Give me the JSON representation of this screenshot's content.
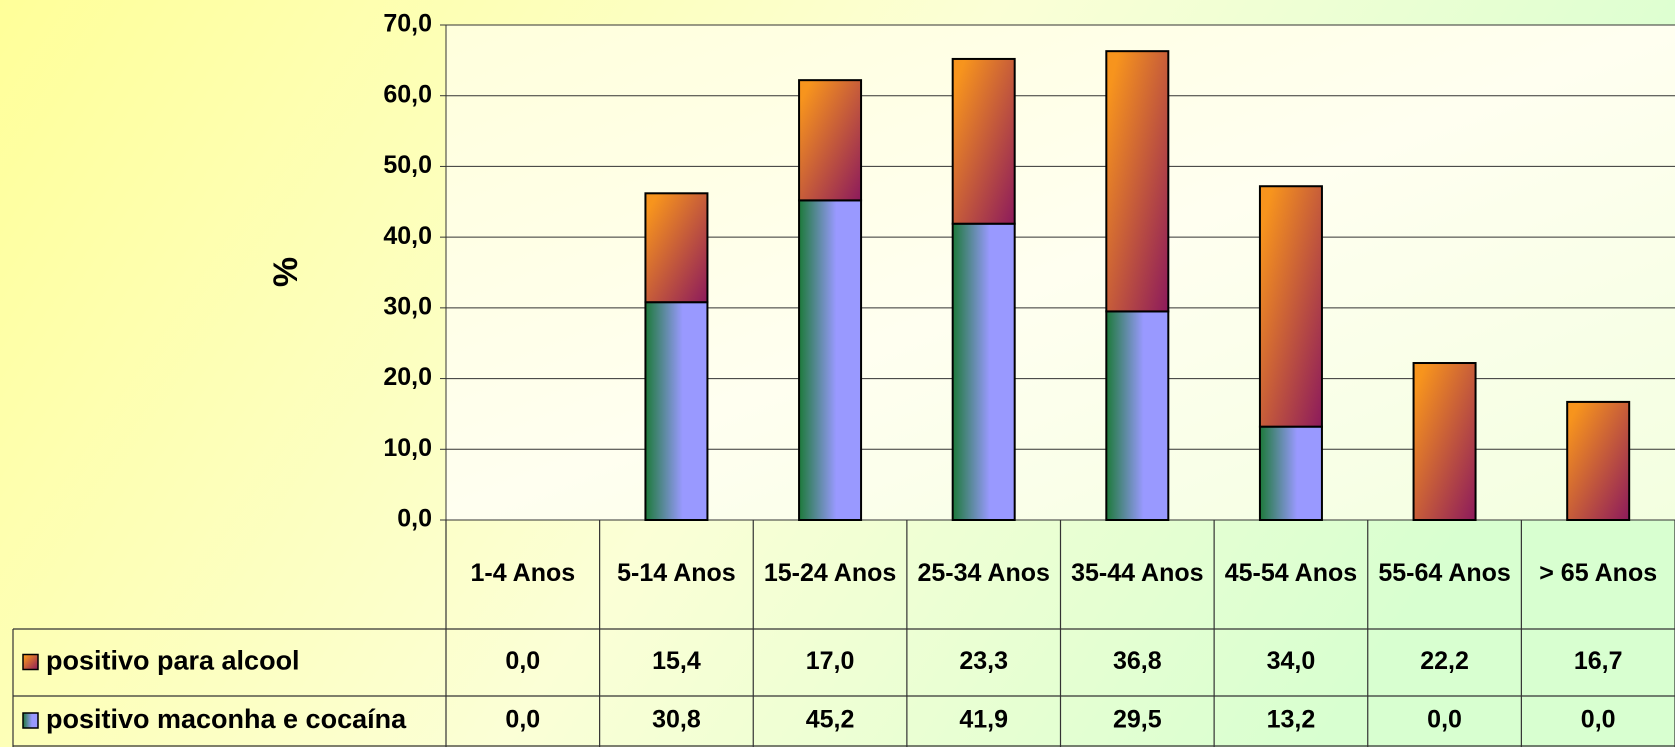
{
  "chart_data": {
    "type": "bar",
    "stacked": true,
    "y_label": "%",
    "categories": [
      "1-4 Anos",
      "5-14 Anos",
      "15-24 Anos",
      "25-34 Anos",
      "35-44 Anos",
      "45-54 Anos",
      "55-64 Anos",
      "> 65 Anos"
    ],
    "series": [
      {
        "name": "positivo para alcool",
        "color": "#f7941d",
        "values": [
          0.0,
          15.4,
          17.0,
          23.3,
          36.8,
          34.0,
          22.2,
          16.7
        ],
        "value_labels": [
          "0,0",
          "15,4",
          "17,0",
          "23,3",
          "36,8",
          "34,0",
          "22,2",
          "16,7"
        ]
      },
      {
        "name": "positivo maconha e cocaína",
        "color": "#9999ff",
        "values": [
          0.0,
          30.8,
          45.2,
          41.9,
          29.5,
          13.2,
          0.0,
          0.0
        ],
        "value_labels": [
          "0,0",
          "30,8",
          "45,2",
          "41,9",
          "29,5",
          "13,2",
          "0,0",
          "0,0"
        ]
      }
    ],
    "stack_order": [
      1,
      0
    ],
    "ylim": [
      0,
      70
    ],
    "yticks": [
      {
        "value": 0,
        "label": "0,0"
      },
      {
        "value": 10,
        "label": "10,0"
      },
      {
        "value": 20,
        "label": "20,0"
      },
      {
        "value": 30,
        "label": "30,0"
      },
      {
        "value": 40,
        "label": "40,0"
      },
      {
        "value": 50,
        "label": "50,0"
      },
      {
        "value": 60,
        "label": "60,0"
      },
      {
        "value": 70,
        "label": "70,0"
      }
    ],
    "grid": true
  }
}
